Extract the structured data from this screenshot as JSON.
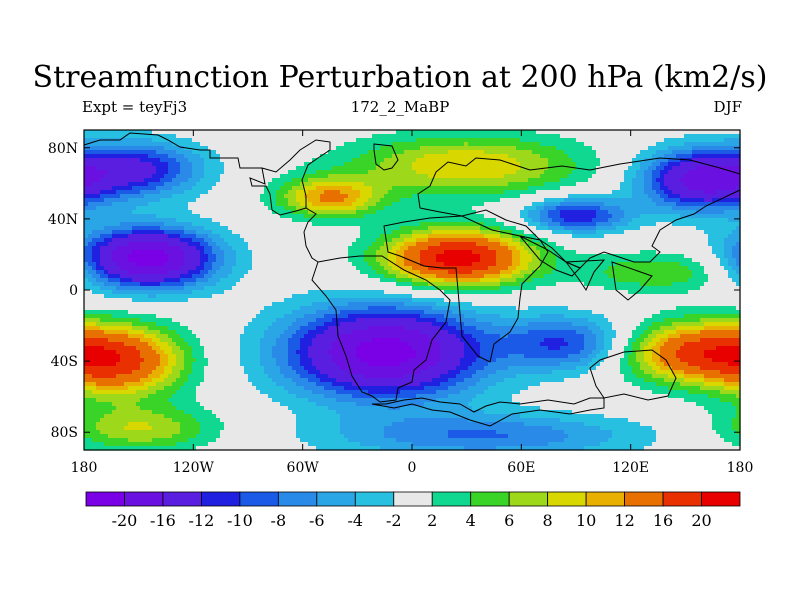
{
  "header": {
    "title": "Streamfunction Perturbation at 200 hPa (km2/s)",
    "left_label": "Expt = teyFj3",
    "center_label": "172_2_MaBP",
    "right_label": "DJF"
  },
  "chart_data": {
    "type": "heatmap",
    "title": "Streamfunction Perturbation at 200 hPa (km2/s)",
    "subtitle_left": "Expt = teyFj3",
    "subtitle_center": "172_2_MaBP",
    "subtitle_right": "DJF",
    "xlim": [
      -180,
      180
    ],
    "ylim": [
      -90,
      90
    ],
    "x_ticks": [
      {
        "value": -180,
        "label": "180"
      },
      {
        "value": -120,
        "label": "120W"
      },
      {
        "value": -60,
        "label": "60W"
      },
      {
        "value": 0,
        "label": "0"
      },
      {
        "value": 60,
        "label": "60E"
      },
      {
        "value": 120,
        "label": "120E"
      },
      {
        "value": 180,
        "label": "180"
      }
    ],
    "y_ticks": [
      {
        "value": 80,
        "label": "80N"
      },
      {
        "value": 40,
        "label": "40N"
      },
      {
        "value": 0,
        "label": "0"
      },
      {
        "value": -40,
        "label": "40S"
      },
      {
        "value": -80,
        "label": "80S"
      }
    ],
    "colorbar": {
      "colors": [
        "#7a00e6",
        "#6a10e0",
        "#5a1ee0",
        "#2020e0",
        "#1a5ae6",
        "#2a8ae8",
        "#2aa6e6",
        "#28c0e0",
        "#e8e8e8",
        "#10d890",
        "#3ad428",
        "#9ed81a",
        "#d8d800",
        "#e8b000",
        "#e87000",
        "#e83000",
        "#e80000"
      ],
      "labels": [
        "-20",
        "-16",
        "-12",
        "-10",
        "-8",
        "-6",
        "-4",
        "-2",
        "2",
        "4",
        "6",
        "8",
        "10",
        "12",
        "16",
        "20"
      ],
      "levels": [
        -20,
        -16,
        -12,
        -10,
        -8,
        -6,
        -4,
        -2,
        2,
        4,
        6,
        8,
        10,
        12,
        16,
        20
      ]
    },
    "features": [
      {
        "name": "pacific-north-low",
        "lon": -150,
        "lat": 68,
        "amp": -12,
        "sx": 25,
        "sy": 11
      },
      {
        "name": "east-asia-low",
        "lon": 160,
        "lat": 62,
        "amp": -18,
        "sx": 24,
        "sy": 12
      },
      {
        "name": "central-asia-low",
        "lon": 90,
        "lat": 42,
        "amp": -12,
        "sx": 20,
        "sy": 7
      },
      {
        "name": "northern-ridge",
        "lon": 30,
        "lat": 70,
        "amp": 10,
        "sx": 45,
        "sy": 12
      },
      {
        "name": "atlantic-ridge",
        "lon": -45,
        "lat": 52,
        "amp": 12,
        "sx": 20,
        "sy": 8
      },
      {
        "name": "tropical-east-pacific-low",
        "lon": -145,
        "lat": 18,
        "amp": -22,
        "sx": 26,
        "sy": 12
      },
      {
        "name": "african-high",
        "lon": 25,
        "lat": 18,
        "amp": 22,
        "sx": 28,
        "sy": 11
      },
      {
        "name": "west-pacific-ridge",
        "lon": 135,
        "lat": 10,
        "amp": 6,
        "sx": 30,
        "sy": 8
      },
      {
        "name": "south-atlantic-low",
        "lon": -15,
        "lat": -35,
        "amp": -22,
        "sx": 38,
        "sy": 18
      },
      {
        "name": "south-pacific-high",
        "lon": -160,
        "lat": -40,
        "amp": 16,
        "sx": 25,
        "sy": 14
      },
      {
        "name": "south-indian-high",
        "lon": 155,
        "lat": -35,
        "amp": 16,
        "sx": 28,
        "sy": 12
      },
      {
        "name": "indian-ocean-low",
        "lon": 85,
        "lat": -30,
        "amp": -10,
        "sx": 25,
        "sy": 11
      },
      {
        "name": "southern-ring",
        "lon": 40,
        "lat": -82,
        "amp": -8,
        "sx": 60,
        "sy": 9
      },
      {
        "name": "pacific-south-band",
        "lon": -150,
        "lat": -78,
        "amp": 8,
        "sx": 30,
        "sy": 9
      }
    ]
  }
}
